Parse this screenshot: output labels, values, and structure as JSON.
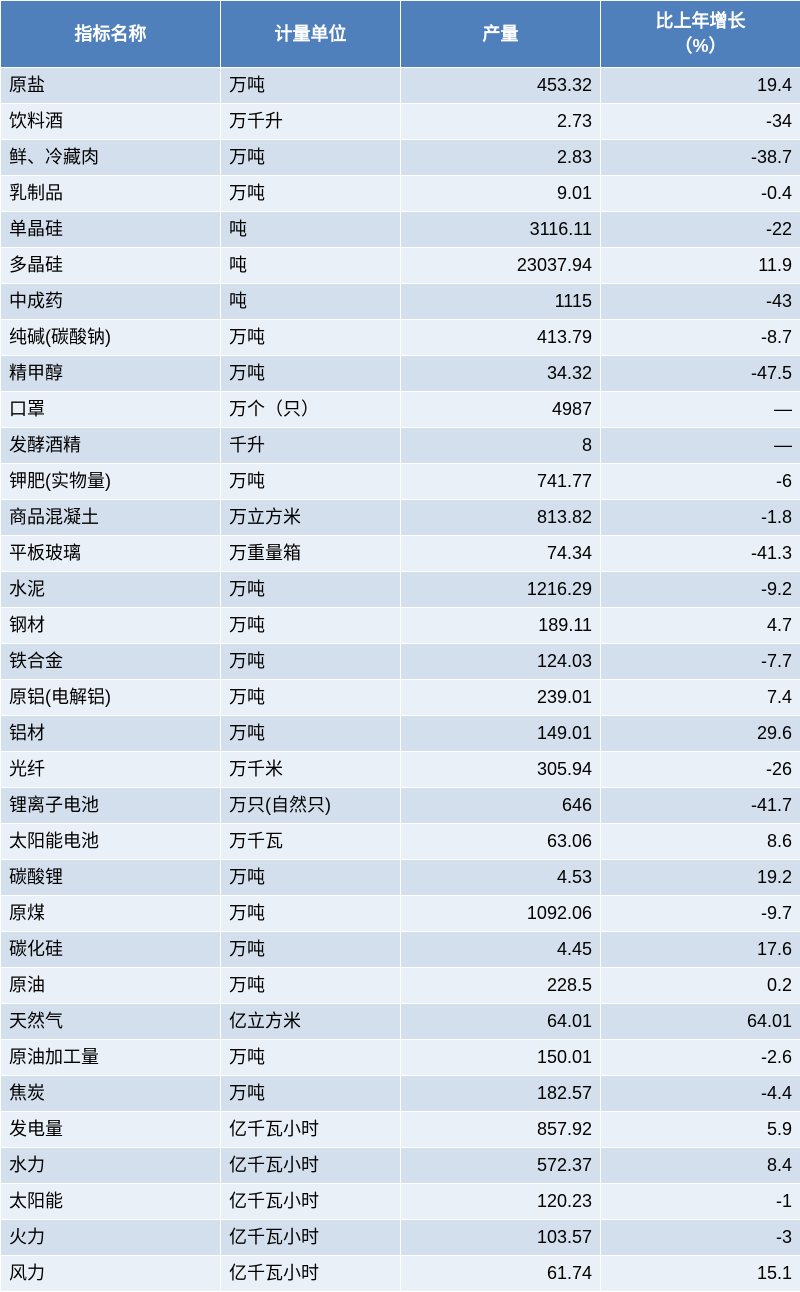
{
  "table": {
    "header": {
      "name": "指标名称",
      "unit": "计量单位",
      "output": "产量",
      "growth": "比上年增长\n（%）"
    },
    "rows": [
      {
        "name": "原盐",
        "unit": "万吨",
        "output": "453.32",
        "growth": "19.4"
      },
      {
        "name": "饮料酒",
        "unit": "万千升",
        "output": "2.73",
        "growth": "-34"
      },
      {
        "name": "鲜、冷藏肉",
        "unit": "万吨",
        "output": "2.83",
        "growth": "-38.7"
      },
      {
        "name": "乳制品",
        "unit": "万吨",
        "output": "9.01",
        "growth": "-0.4"
      },
      {
        "name": "单晶硅",
        "unit": "吨",
        "output": "3116.11",
        "growth": "-22"
      },
      {
        "name": "多晶硅",
        "unit": "吨",
        "output": "23037.94",
        "growth": "11.9"
      },
      {
        "name": "中成药",
        "unit": "吨",
        "output": "1115",
        "growth": "-43"
      },
      {
        "name": "纯碱(碳酸钠)",
        "unit": "万吨",
        "output": "413.79",
        "growth": "-8.7"
      },
      {
        "name": "精甲醇",
        "unit": "万吨",
        "output": "34.32",
        "growth": "-47.5"
      },
      {
        "name": "口罩",
        "unit": "万个（只）",
        "output": "4987",
        "growth": "—"
      },
      {
        "name": "发酵酒精",
        "unit": "千升",
        "output": "8",
        "growth": "—"
      },
      {
        "name": "钾肥(实物量)",
        "unit": "万吨",
        "output": "741.77",
        "growth": "-6"
      },
      {
        "name": "商品混凝土",
        "unit": "万立方米",
        "output": "813.82",
        "growth": "-1.8"
      },
      {
        "name": "平板玻璃",
        "unit": "万重量箱",
        "output": "74.34",
        "growth": "-41.3"
      },
      {
        "name": "水泥",
        "unit": "万吨",
        "output": "1216.29",
        "growth": "-9.2"
      },
      {
        "name": "钢材",
        "unit": "万吨",
        "output": "189.11",
        "growth": "4.7"
      },
      {
        "name": "铁合金",
        "unit": "万吨",
        "output": "124.03",
        "growth": "-7.7"
      },
      {
        "name": "原铝(电解铝)",
        "unit": "万吨",
        "output": "239.01",
        "growth": "7.4"
      },
      {
        "name": "铝材",
        "unit": "万吨",
        "output": "149.01",
        "growth": "29.6"
      },
      {
        "name": "光纤",
        "unit": "万千米",
        "output": "305.94",
        "growth": "-26"
      },
      {
        "name": "锂离子电池",
        "unit": "万只(自然只)",
        "output": "646",
        "growth": "-41.7"
      },
      {
        "name": "太阳能电池",
        "unit": "万千瓦",
        "output": "63.06",
        "growth": "8.6"
      },
      {
        "name": "碳酸锂",
        "unit": "万吨",
        "output": "4.53",
        "growth": "19.2"
      },
      {
        "name": "原煤",
        "unit": "万吨",
        "output": "1092.06",
        "growth": "-9.7"
      },
      {
        "name": "碳化硅",
        "unit": "万吨",
        "output": "4.45",
        "growth": "17.6"
      },
      {
        "name": "原油",
        "unit": "万吨",
        "output": "228.5",
        "growth": "0.2"
      },
      {
        "name": "天然气",
        "unit": "亿立方米",
        "output": "64.01",
        "growth": "64.01"
      },
      {
        "name": "原油加工量",
        "unit": "万吨",
        "output": "150.01",
        "growth": "-2.6"
      },
      {
        "name": "焦炭",
        "unit": "万吨",
        "output": "182.57",
        "growth": "-4.4"
      },
      {
        "name": "发电量",
        "unit": "亿千瓦小时",
        "output": "857.92",
        "growth": "5.9"
      },
      {
        "name": "水力",
        "unit": "亿千瓦小时",
        "output": "572.37",
        "growth": "8.4"
      },
      {
        "name": "太阳能",
        "unit": "亿千瓦小时",
        "output": "120.23",
        "growth": "-1"
      },
      {
        "name": "火力",
        "unit": "亿千瓦小时",
        "output": "103.57",
        "growth": "-3"
      },
      {
        "name": "风力",
        "unit": "亿千瓦小时",
        "output": "61.74",
        "growth": "15.1"
      }
    ],
    "colors": {
      "header_bg": "#5080bb",
      "header_text": "#ffffff",
      "row_odd_bg": "#d3dfec",
      "row_even_bg": "#eaf0f7",
      "text": "#000000",
      "border": "#ffffff"
    },
    "font_sizes": {
      "header": 18,
      "body": 18
    },
    "column_widths": {
      "name": 220,
      "unit": 180,
      "output": 200,
      "growth": 200
    }
  }
}
